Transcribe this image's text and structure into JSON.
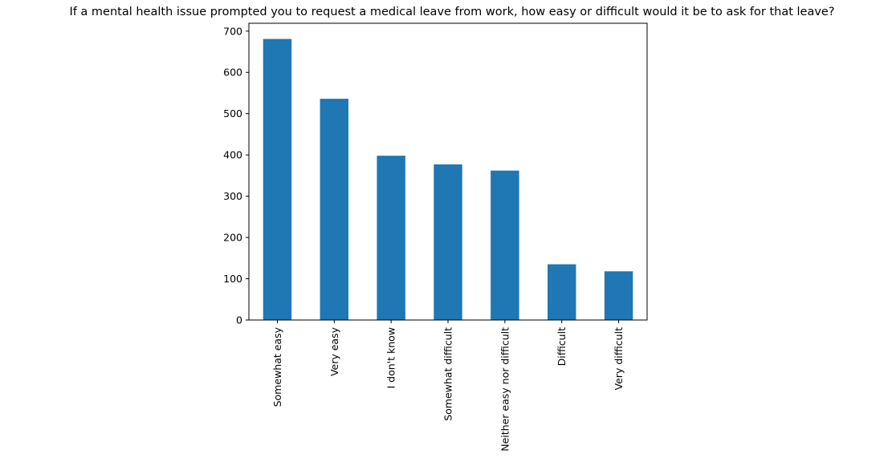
{
  "chart_data": {
    "type": "bar",
    "title": "If a mental health issue prompted you to request a medical leave from work, how easy or difficult would it be to ask for that leave?",
    "xlabel": "",
    "ylabel": "",
    "categories": [
      "Somewhat easy",
      "Very easy",
      "I don't know",
      "Somewhat difficult",
      "Neither easy nor difficult",
      "Difficult",
      "Very difficult"
    ],
    "values": [
      681,
      536,
      398,
      377,
      362,
      135,
      118
    ],
    "ylim": [
      0,
      719
    ],
    "yticks": [
      0,
      100,
      200,
      300,
      400,
      500,
      600,
      700
    ],
    "grid": false,
    "legend": "none",
    "bar_color": "#1f77b4",
    "axis_color": "#000000"
  }
}
